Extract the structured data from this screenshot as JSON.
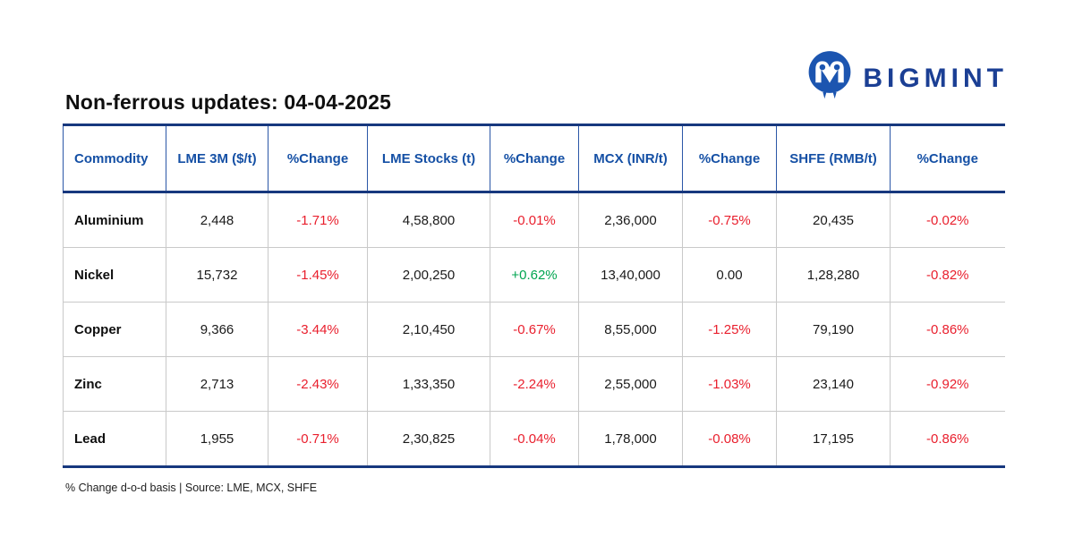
{
  "brand": {
    "name": "BIGMINT",
    "logo_color": "#1c55b0",
    "text_color": "#1b3f94"
  },
  "page_title": "Non-ferrous updates: 04-04-2025",
  "chart_data": {
    "type": "table",
    "title": "Non-ferrous updates: 04-04-2025",
    "columns": [
      "Commodity",
      "LME 3M ($/t)",
      "%Change",
      "LME Stocks (t)",
      "%Change",
      "MCX (INR/t)",
      "%Change",
      "SHFE (RMB/t)",
      "%Change"
    ],
    "rows": [
      [
        "Aluminium",
        "2,448",
        "-1.71%",
        "4,58,800",
        "-0.01%",
        "2,36,000",
        "-0.75%",
        "20,435",
        "-0.02%"
      ],
      [
        "Nickel",
        "15,732",
        "-1.45%",
        "2,00,250",
        "+0.62%",
        "13,40,000",
        "0.00",
        "1,28,280",
        "-0.82%"
      ],
      [
        "Copper",
        "9,366",
        "-3.44%",
        "2,10,450",
        "-0.67%",
        "8,55,000",
        "-1.25%",
        "79,190",
        "-0.86%"
      ],
      [
        "Zinc",
        "2,713",
        "-2.43%",
        "1,33,350",
        "-2.24%",
        "2,55,000",
        "-1.03%",
        "23,140",
        "-0.92%"
      ],
      [
        "Lead",
        "1,955",
        "-0.71%",
        "2,30,825",
        "-0.04%",
        "1,78,000",
        "-0.08%",
        "17,195",
        "-0.86%"
      ]
    ],
    "notes": "% Change d-o-d basis | Source: LME, MCX, SHFE"
  },
  "footer_note": "% Change d-o-d basis | Source: LME, MCX, SHFE",
  "colors": {
    "negative": "#e91f2d",
    "positive": "#00a550",
    "neutral": "#1a1a1a",
    "header_text": "#1550a5",
    "border": "#17387e",
    "row_divider": "#c9c9c9"
  }
}
